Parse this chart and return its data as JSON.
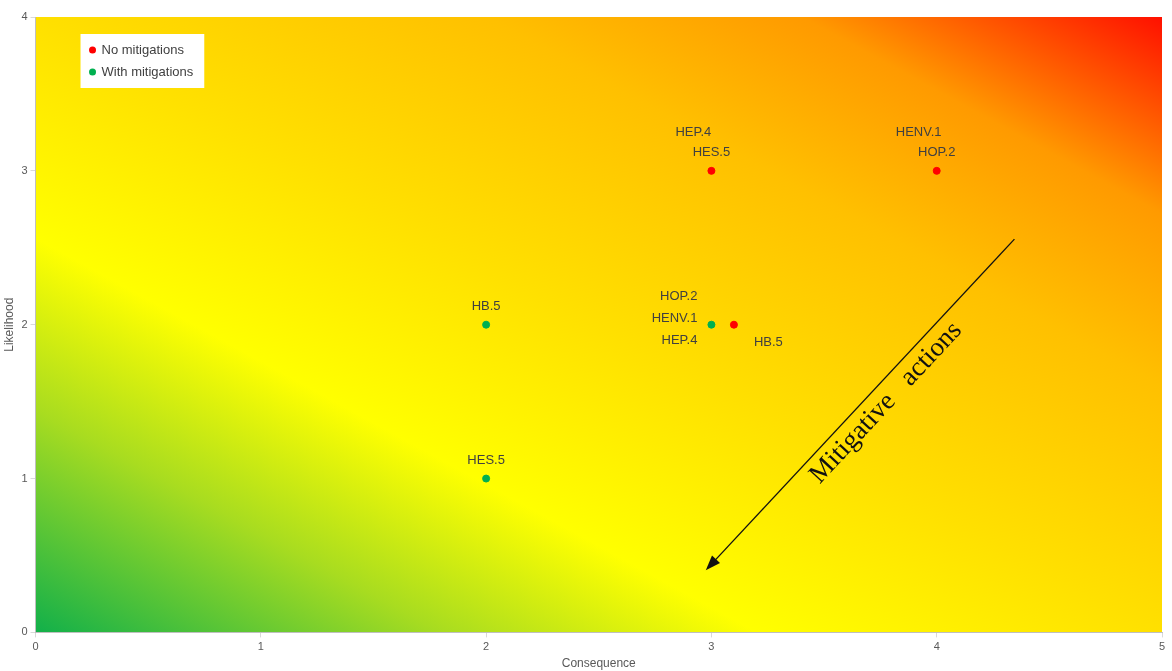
{
  "chart_data": {
    "type": "scatter",
    "xlabel": "Consequence",
    "ylabel": "Likelihood",
    "xlim": [
      0,
      5
    ],
    "xticks": [
      0,
      1,
      2,
      3,
      4,
      5
    ],
    "ylim": [
      0,
      4
    ],
    "yticks": [
      0,
      1,
      2,
      3,
      4
    ],
    "grid": false,
    "legend": "top left",
    "marker": "circle",
    "series": [
      {
        "name": "No mitigations",
        "color": "#ff0000",
        "x": [
          3,
          4,
          3.1
        ],
        "values": [
          3,
          3,
          2
        ]
      },
      {
        "name": "With mitigations",
        "color": "#00b050",
        "x": [
          2,
          3,
          2
        ],
        "values": [
          2,
          2,
          1
        ]
      }
    ],
    "annotations": [
      {
        "text": "HEP.4",
        "x": 3,
        "y": 3
      },
      {
        "text": "HES.5",
        "x": 3,
        "y": 3
      },
      {
        "text": "HENV.1",
        "x": 4,
        "y": 3
      },
      {
        "text": "HOP.2",
        "x": 4,
        "y": 3
      },
      {
        "text": "HOP.2",
        "x": 3,
        "y": 2
      },
      {
        "text": "HENV.1",
        "x": 3,
        "y": 2
      },
      {
        "text": "HEP.4",
        "x": 3,
        "y": 2
      },
      {
        "text": "HB.5",
        "x": 3.1,
        "y": 2
      },
      {
        "text": "HB.5",
        "x": 2,
        "y": 2
      },
      {
        "text": "HES.5",
        "x": 2,
        "y": 1
      },
      "Mitigative actions"
    ]
  }
}
